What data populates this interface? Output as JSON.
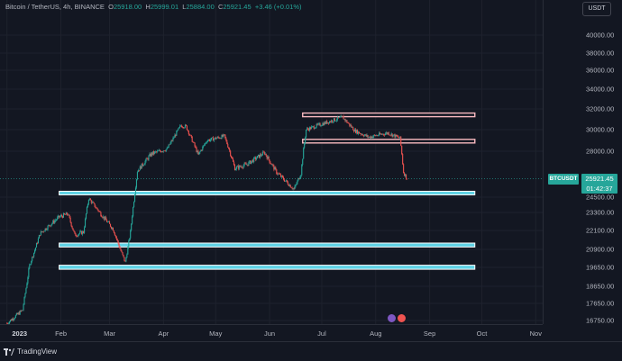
{
  "legend": {
    "symbol": "Bitcoin / TetherUS, 4h, BINANCE",
    "o_label": "O",
    "o": "25918.00",
    "h_label": "H",
    "h": "25999.01",
    "l_label": "L",
    "l": "25884.00",
    "c_label": "C",
    "c": "25921.45",
    "change": "+3.46 (+0.01%)"
  },
  "currency_button": "USDT",
  "price_tag": {
    "symbol": "BTCUSDT",
    "price": "25921.45",
    "countdown": "01:42:37"
  },
  "y_ticks": [
    "40000.00",
    "38000.00",
    "36000.00",
    "34000.00",
    "32000.00",
    "30000.00",
    "28000.00",
    "24500.00",
    "23300.00",
    "22100.00",
    "20900.00",
    "19650.00",
    "18650.00",
    "17650.00",
    "16750.00"
  ],
  "x_ticks": [
    {
      "label": "2023",
      "bold": true
    },
    {
      "label": "Feb",
      "bold": false
    },
    {
      "label": "Mar",
      "bold": false
    },
    {
      "label": "Apr",
      "bold": false
    },
    {
      "label": "May",
      "bold": false
    },
    {
      "label": "Jun",
      "bold": false
    },
    {
      "label": "Jul",
      "bold": false
    },
    {
      "label": "Aug",
      "bold": false
    },
    {
      "label": "Sep",
      "bold": false
    },
    {
      "label": "Oct",
      "bold": false
    },
    {
      "label": "Nov",
      "bold": false
    }
  ],
  "footer": {
    "brand": "TradingView"
  },
  "colors": {
    "up": "#26a69a",
    "down": "#ef5350",
    "support": "#4dd0e1",
    "resistance": "#f8c8cc",
    "grid": "#1e222d"
  },
  "chart_data": {
    "type": "candlestick",
    "symbol": "BTCUSDT",
    "timeframe": "4h",
    "last_price": 25921.45,
    "path": [
      {
        "date": "2023-01-01",
        "price": 16600
      },
      {
        "date": "2023-01-10",
        "price": 17300
      },
      {
        "date": "2023-01-14",
        "price": 19800
      },
      {
        "date": "2023-01-20",
        "price": 21900
      },
      {
        "date": "2023-01-31",
        "price": 23000
      },
      {
        "date": "2023-02-05",
        "price": 23200
      },
      {
        "date": "2023-02-09",
        "price": 21800
      },
      {
        "date": "2023-02-14",
        "price": 22000
      },
      {
        "date": "2023-02-17",
        "price": 24400
      },
      {
        "date": "2023-02-24",
        "price": 23200
      },
      {
        "date": "2023-03-03",
        "price": 22200
      },
      {
        "date": "2023-03-10",
        "price": 20000
      },
      {
        "date": "2023-03-13",
        "price": 22000
      },
      {
        "date": "2023-03-17",
        "price": 26500
      },
      {
        "date": "2023-03-25",
        "price": 27800
      },
      {
        "date": "2023-04-03",
        "price": 28200
      },
      {
        "date": "2023-04-11",
        "price": 30400
      },
      {
        "date": "2023-04-14",
        "price": 30300
      },
      {
        "date": "2023-04-21",
        "price": 27700
      },
      {
        "date": "2023-04-26",
        "price": 29000
      },
      {
        "date": "2023-05-06",
        "price": 29400
      },
      {
        "date": "2023-05-12",
        "price": 26700
      },
      {
        "date": "2023-05-19",
        "price": 27000
      },
      {
        "date": "2023-05-29",
        "price": 27900
      },
      {
        "date": "2023-06-05",
        "price": 26400
      },
      {
        "date": "2023-06-15",
        "price": 25100
      },
      {
        "date": "2023-06-19",
        "price": 26300
      },
      {
        "date": "2023-06-22",
        "price": 30000
      },
      {
        "date": "2023-07-02",
        "price": 30600
      },
      {
        "date": "2023-07-13",
        "price": 31200
      },
      {
        "date": "2023-07-20",
        "price": 29900
      },
      {
        "date": "2023-07-28",
        "price": 29300
      },
      {
        "date": "2023-08-08",
        "price": 29700
      },
      {
        "date": "2023-08-15",
        "price": 29200
      },
      {
        "date": "2023-08-17",
        "price": 26400
      },
      {
        "date": "2023-08-19",
        "price": 25921
      }
    ],
    "zones": [
      {
        "kind": "resistance",
        "low": 31300,
        "high": 31600,
        "from": "2023-06-20",
        "to": "2023-09-27"
      },
      {
        "kind": "resistance",
        "low": 28900,
        "high": 29100,
        "from": "2023-06-20",
        "to": "2023-09-27"
      },
      {
        "kind": "support",
        "low": 24700,
        "high": 24950,
        "from": "2023-01-31",
        "to": "2023-09-27"
      },
      {
        "kind": "support",
        "low": 21050,
        "high": 21300,
        "from": "2023-01-31",
        "to": "2023-09-27"
      },
      {
        "kind": "support",
        "low": 19550,
        "high": 19800,
        "from": "2023-01-31",
        "to": "2023-09-27"
      }
    ],
    "x_range": [
      "2022-12-28",
      "2023-11-05"
    ],
    "y_ticks": [
      40000,
      38000,
      36000,
      34000,
      32000,
      30000,
      28000,
      24500,
      23300,
      22100,
      20900,
      19650,
      18650,
      17650,
      16750
    ]
  }
}
